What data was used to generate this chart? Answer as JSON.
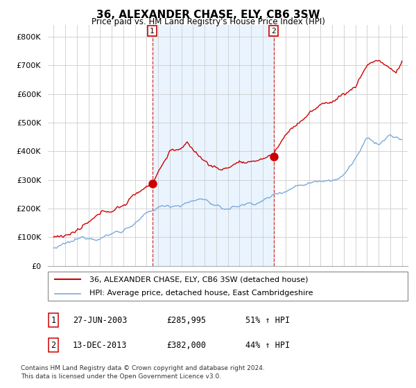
{
  "title": "36, ALEXANDER CHASE, ELY, CB6 3SW",
  "subtitle": "Price paid vs. HM Land Registry's House Price Index (HPI)",
  "legend_line1": "36, ALEXANDER CHASE, ELY, CB6 3SW (detached house)",
  "legend_line2": "HPI: Average price, detached house, East Cambridgeshire",
  "footer1": "Contains HM Land Registry data © Crown copyright and database right 2024.",
  "footer2": "This data is licensed under the Open Government Licence v3.0.",
  "annotation1_label": "1",
  "annotation1_date": "27-JUN-2003",
  "annotation1_price": "£285,995",
  "annotation1_hpi": "51% ↑ HPI",
  "annotation2_label": "2",
  "annotation2_date": "13-DEC-2013",
  "annotation2_price": "£382,000",
  "annotation2_hpi": "44% ↑ HPI",
  "sale1_x": 2003.49,
  "sale1_y": 285995,
  "sale2_x": 2013.95,
  "sale2_y": 382000,
  "vline1_x": 2003.49,
  "vline2_x": 2013.95,
  "red_color": "#cc0000",
  "blue_color": "#7aaadd",
  "shade_color": "#ddeeff",
  "background_color": "#ffffff",
  "grid_color": "#cccccc",
  "ylim": [
    0,
    840000
  ],
  "xlim": [
    1994.5,
    2025.5
  ],
  "yticks": [
    0,
    100000,
    200000,
    300000,
    400000,
    500000,
    600000,
    700000,
    800000
  ],
  "xticks": [
    1995,
    1996,
    1997,
    1998,
    1999,
    2000,
    2001,
    2002,
    2003,
    2004,
    2005,
    2006,
    2007,
    2008,
    2009,
    2010,
    2011,
    2012,
    2013,
    2014,
    2015,
    2016,
    2017,
    2018,
    2019,
    2020,
    2021,
    2022,
    2023,
    2024,
    2025
  ]
}
